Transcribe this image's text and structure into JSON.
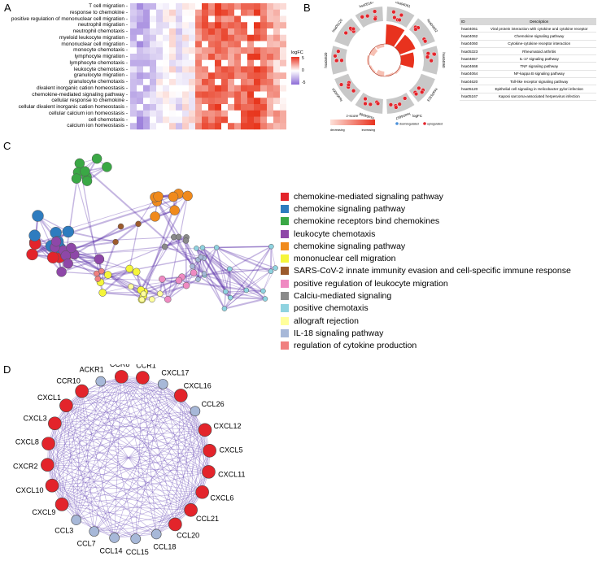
{
  "panels": {
    "a": "A",
    "b": "B",
    "c": "C",
    "d": "D"
  },
  "panel_a": {
    "rows": [
      "T cell migration",
      "response to chemokine",
      "positive regulation of mononuclear cell migration",
      "neutrophil migration",
      "neutrophil chemotaxis",
      "myeloid leukocyte migration",
      "mononuclear cell migration",
      "monocyte chemotaxis",
      "lymphocyte migration",
      "lymphocyte chemotaxis",
      "leukocyte chemotaxis",
      "granulocyte migration",
      "granulocyte chemotaxis",
      "divalent inorganic cation homeostasis",
      "chemokine-mediated signaling pathway",
      "cellular response to chemokine",
      "cellular divalent inorganic cation homeostasis",
      "cellular calcium ion homeostasis",
      "cell chemotaxis",
      "calcium ion homeostasis"
    ],
    "legend": {
      "title": "logFC",
      "ticks": [
        "5",
        "0",
        "-5"
      ]
    },
    "colors": {
      "high": "#e8321e",
      "mid": "#ffffff",
      "low": "#8c6bd6"
    }
  },
  "panel_b": {
    "sector_labels": [
      "hsa04061",
      "hsa04062",
      "hsa04060",
      "hsa05323",
      "hsa04657",
      "hsa04668",
      "hsa04064",
      "hsa04620",
      "hsa05120",
      "hsa05167"
    ],
    "zscore_legend": {
      "title": "z-score",
      "low": "decreasing",
      "high": "increasing"
    },
    "logfc_legend": {
      "title": "logFC",
      "down": "downregulated",
      "up": "upregulated"
    },
    "table": {
      "headers": [
        "ID",
        "Description"
      ],
      "rows": [
        [
          "hsa04061",
          "Viral protein interaction with cytokine and cytokine receptor"
        ],
        [
          "hsa04062",
          "Chemokine signaling pathway"
        ],
        [
          "hsa04060",
          "Cytokine-cytokine receptor interaction"
        ],
        [
          "hsa05323",
          "Rheumatoid arthritis"
        ],
        [
          "hsa04657",
          "IL-17 signaling pathway"
        ],
        [
          "hsa04668",
          "TNF signaling pathway"
        ],
        [
          "hsa04064",
          "NF-kappa B signaling pathway"
        ],
        [
          "hsa04620",
          "Toll-like receptor signaling pathway"
        ],
        [
          "hsa05120",
          "Epithelial cell signaling in Helicobacter pylori infection"
        ],
        [
          "hsa05167",
          "Kaposi sarcoma-associated herpesvirus infection"
        ]
      ]
    }
  },
  "panel_c": {
    "legend": [
      {
        "label": "chemokine-mediated signaling pathway",
        "color": "#e3242b"
      },
      {
        "label": "chemokine signaling pathway",
        "color": "#2e7cbf"
      },
      {
        "label": "chemokine receptors bind chemokines",
        "color": "#3aa845"
      },
      {
        "label": "leukocyte chemotaxis",
        "color": "#8e47a8"
      },
      {
        "label": "chemokine signaling pathway",
        "color": "#f08a1c"
      },
      {
        "label": "mononuclear cell migration",
        "color": "#f5f53a"
      },
      {
        "label": "SARS-CoV-2 innate immunity evasion and cell-specific immune response",
        "color": "#9c5a2c"
      },
      {
        "label": "positive regulation of leukocyte migration",
        "color": "#ef8ac2"
      },
      {
        "label": "Calciu-mediated signaling",
        "color": "#8a8a8a"
      },
      {
        "label": "positive chemotaxis",
        "color": "#8fd3e0"
      },
      {
        "label": "allograft rejection",
        "color": "#ffff9c"
      },
      {
        "label": "IL-18 signaling pathway",
        "color": "#a7b8d8"
      },
      {
        "label": "regulation of cytokine production",
        "color": "#f08080"
      }
    ]
  },
  "panel_d": {
    "nodes": [
      {
        "label": "CCR1",
        "color": "#e3242b"
      },
      {
        "label": "CXCL17",
        "color": "#a7b8d8"
      },
      {
        "label": "CXCL16",
        "color": "#e3242b"
      },
      {
        "label": "CCL26",
        "color": "#a7b8d8"
      },
      {
        "label": "CXCL12",
        "color": "#e3242b"
      },
      {
        "label": "CXCL5",
        "color": "#e3242b"
      },
      {
        "label": "CXCL11",
        "color": "#e3242b"
      },
      {
        "label": "CXCL6",
        "color": "#e3242b"
      },
      {
        "label": "CCL21",
        "color": "#e3242b"
      },
      {
        "label": "CCL20",
        "color": "#e3242b"
      },
      {
        "label": "CCL18",
        "color": "#a7b8d8"
      },
      {
        "label": "CCL15",
        "color": "#a7b8d8"
      },
      {
        "label": "CCL14",
        "color": "#a7b8d8"
      },
      {
        "label": "CCL7",
        "color": "#a7b8d8"
      },
      {
        "label": "CCL3",
        "color": "#a7b8d8"
      },
      {
        "label": "CXCL9",
        "color": "#e3242b"
      },
      {
        "label": "CXCL10",
        "color": "#e3242b"
      },
      {
        "label": "CXCR2",
        "color": "#e3242b"
      },
      {
        "label": "CXCL8",
        "color": "#e3242b"
      },
      {
        "label": "CXCL3",
        "color": "#e3242b"
      },
      {
        "label": "CXCL1",
        "color": "#e3242b"
      },
      {
        "label": "CCR10",
        "color": "#e3242b"
      },
      {
        "label": "ACKR1",
        "color": "#a7b8d8"
      },
      {
        "label": "CCR8",
        "color": "#e3242b"
      }
    ],
    "edge_color": "#7a5fc0"
  }
}
